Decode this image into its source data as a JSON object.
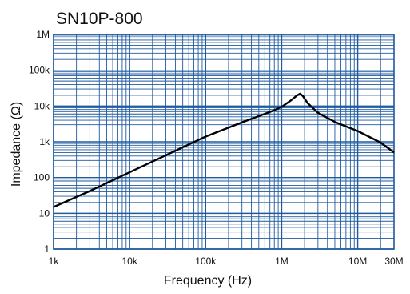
{
  "chart_data": {
    "type": "line",
    "title": "SN10P-800",
    "xlabel": "Frequency (Hz)",
    "ylabel": "Impedance (Ω)",
    "x_scale": "log",
    "y_scale": "log",
    "xlim": [
      1000,
      30000000
    ],
    "ylim": [
      1,
      1000000
    ],
    "x_ticks": [
      {
        "value": 1000,
        "label": "1k"
      },
      {
        "value": 10000,
        "label": "10k"
      },
      {
        "value": 100000,
        "label": "100k"
      },
      {
        "value": 1000000,
        "label": "1M"
      },
      {
        "value": 10000000,
        "label": "10M"
      },
      {
        "value": 30000000,
        "label": "30M"
      }
    ],
    "y_ticks": [
      {
        "value": 1,
        "label": "1"
      },
      {
        "value": 10,
        "label": "10"
      },
      {
        "value": 100,
        "label": "100"
      },
      {
        "value": 1000,
        "label": "1k"
      },
      {
        "value": 10000,
        "label": "10k"
      },
      {
        "value": 100000,
        "label": "100k"
      },
      {
        "value": 1000000,
        "label": "1M"
      }
    ],
    "grid": true,
    "grid_color": "#1f5a9e",
    "line_color": "#000000",
    "series": [
      {
        "points": [
          {
            "x": 1000,
            "y": 15
          },
          {
            "x": 3000,
            "y": 42
          },
          {
            "x": 10000,
            "y": 140
          },
          {
            "x": 30000,
            "y": 420
          },
          {
            "x": 100000,
            "y": 1400
          },
          {
            "x": 300000,
            "y": 3500
          },
          {
            "x": 700000,
            "y": 6800
          },
          {
            "x": 1000000,
            "y": 9500
          },
          {
            "x": 1300000,
            "y": 14000
          },
          {
            "x": 1600000,
            "y": 20000
          },
          {
            "x": 1750000,
            "y": 22000
          },
          {
            "x": 1900000,
            "y": 19000
          },
          {
            "x": 2200000,
            "y": 12000
          },
          {
            "x": 3000000,
            "y": 6500
          },
          {
            "x": 5000000,
            "y": 3600
          },
          {
            "x": 10000000,
            "y": 2000
          },
          {
            "x": 20000000,
            "y": 950
          },
          {
            "x": 30000000,
            "y": 500
          }
        ]
      }
    ]
  }
}
